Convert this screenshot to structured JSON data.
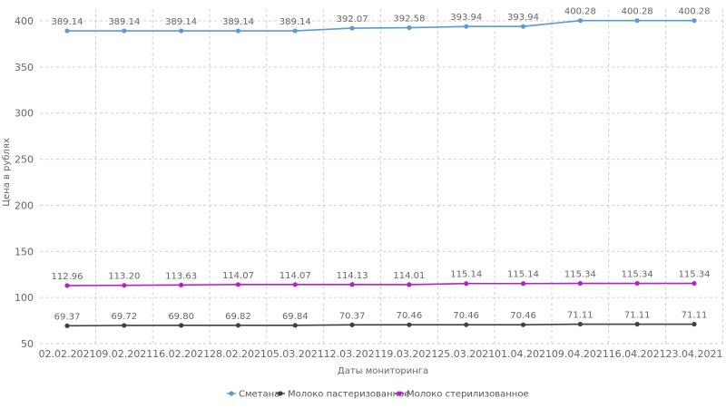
{
  "chart_data": {
    "type": "line",
    "xlabel": "Даты мониторинга",
    "ylabel": "Цена в рублях",
    "ylim": [
      50,
      400
    ],
    "yticks": [
      50,
      100,
      150,
      200,
      250,
      300,
      350,
      400
    ],
    "grid": true,
    "legend_position": "bottom",
    "categories": [
      "02.02.2021",
      "09.02.2021",
      "16.02.2021",
      "28.02.2021",
      "05.03.2021",
      "12.03.2021",
      "19.03.2021",
      "25.03.2021",
      "01.04.2021",
      "09.04.2021",
      "16.04.2021",
      "23.04.2021"
    ],
    "series": [
      {
        "name": "Сметана",
        "color": "#5b9bd5",
        "values": [
          389.14,
          389.14,
          389.14,
          389.14,
          389.14,
          392.07,
          392.58,
          393.94,
          393.94,
          400.28,
          400.28,
          400.28
        ],
        "labels": [
          "389.14",
          "389.14",
          "389.14",
          "389.14",
          "389.14",
          "392.07",
          "392.58",
          "393.94",
          "393.94",
          "400.28",
          "400.28",
          "400.28"
        ]
      },
      {
        "name": "Молоко пастеризованное",
        "color": "#404040",
        "values": [
          69.37,
          69.72,
          69.8,
          69.82,
          69.84,
          70.37,
          70.46,
          70.46,
          70.46,
          71.11,
          71.11,
          71.11
        ],
        "labels": [
          "69.37",
          "69.72",
          "69.80",
          "69.82",
          "69.84",
          "70.37",
          "70.46",
          "70.46",
          "70.46",
          "71.11",
          "71.11",
          "71.11"
        ]
      },
      {
        "name": "Молоко стерилизованное",
        "color": "#b620c9",
        "values": [
          112.96,
          113.2,
          113.63,
          114.07,
          114.07,
          114.13,
          114.01,
          115.14,
          115.14,
          115.34,
          115.34,
          115.34
        ],
        "labels": [
          "112.96",
          "113.20",
          "113.63",
          "114.07",
          "114.07",
          "114.13",
          "114.01",
          "115.14",
          "115.14",
          "115.34",
          "115.34",
          "115.34"
        ]
      }
    ]
  }
}
